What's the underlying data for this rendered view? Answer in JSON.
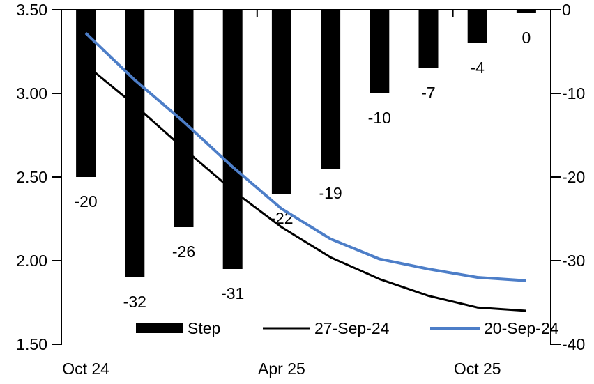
{
  "chart_data": {
    "type": "combo-bar-line",
    "title": "",
    "n_categories": 10,
    "grid": false,
    "x_tick_labels": [
      {
        "index": 0,
        "label": "Oct 24"
      },
      {
        "index": 4,
        "label": "Apr 25"
      },
      {
        "index": 8,
        "label": "Oct 25"
      }
    ],
    "bar_series": {
      "name": "Step",
      "axis": "right",
      "color": "#000000",
      "plot_values": [
        -20,
        -32,
        -26,
        -31,
        -22,
        -19,
        -10,
        -7,
        -4,
        -0.4
      ],
      "data_labels": [
        "-20",
        "-32",
        "-26",
        "-31",
        "-22",
        "-19",
        "-10",
        "-7",
        "-4",
        "0"
      ]
    },
    "line_series": [
      {
        "name": "27-Sep-24",
        "axis": "left",
        "color": "#000000",
        "stroke_width": 3,
        "values": [
          3.17,
          2.93,
          2.67,
          2.42,
          2.2,
          2.02,
          1.89,
          1.79,
          1.72,
          1.7
        ]
      },
      {
        "name": "20-Sep-24",
        "axis": "left",
        "color": "#4d7ec8",
        "stroke_width": 4,
        "values": [
          3.36,
          3.08,
          2.83,
          2.56,
          2.31,
          2.13,
          2.01,
          1.95,
          1.9,
          1.88
        ]
      }
    ],
    "left_axis": {
      "min": 1.5,
      "max": 3.5,
      "tick_labels": [
        "3.50",
        "3.00",
        "2.50",
        "2.00",
        "1.50"
      ]
    },
    "right_axis": {
      "min": -40,
      "max": 0,
      "tick_labels": [
        "0",
        "-10",
        "-20",
        "-30",
        "-40"
      ]
    },
    "legend": {
      "position": "bottom",
      "items": [
        {
          "label": "Step",
          "swatch": "bar",
          "color": "#000000"
        },
        {
          "label": "27-Sep-24",
          "swatch": "line",
          "color": "#000000",
          "stroke_width": 3
        },
        {
          "label": "20-Sep-24",
          "swatch": "line",
          "color": "#4d7ec8",
          "stroke_width": 4
        }
      ]
    }
  }
}
